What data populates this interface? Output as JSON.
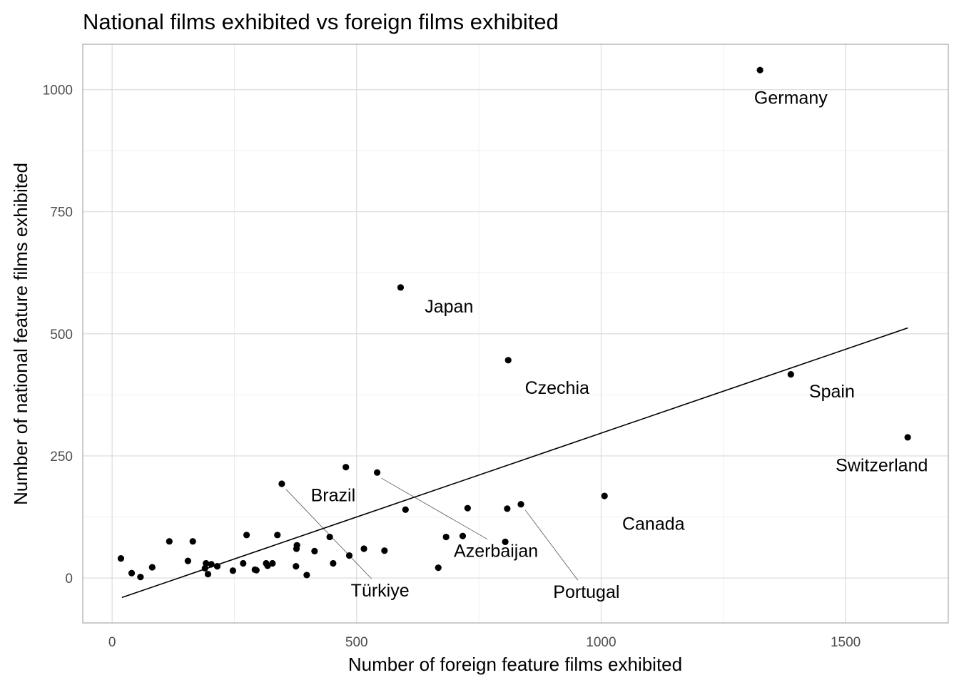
{
  "chart_data": {
    "type": "scatter",
    "title": "National films exhibited vs foreign films exhibited",
    "xlabel": "Number of foreign feature films exhibited",
    "ylabel": "Number of national feature films exhibited",
    "xlim": [
      -60,
      1710
    ],
    "ylim": [
      -92,
      1093
    ],
    "x_ticks": [
      0,
      500,
      1000,
      1500
    ],
    "y_ticks": [
      0,
      250,
      500,
      750,
      1000
    ],
    "x_tick_labels": [
      "0",
      "500",
      "1000",
      "1500"
    ],
    "y_tick_labels": [
      "0",
      "250",
      "500",
      "750",
      "1000"
    ],
    "grid": true,
    "trend_line": {
      "x1": 20,
      "y1": -40,
      "x2": 1627,
      "y2": 512
    },
    "points": [
      {
        "x": 18,
        "y": 40
      },
      {
        "x": 40,
        "y": 10
      },
      {
        "x": 58,
        "y": 2
      },
      {
        "x": 82,
        "y": 22
      },
      {
        "x": 117,
        "y": 75
      },
      {
        "x": 155,
        "y": 35
      },
      {
        "x": 165,
        "y": 75
      },
      {
        "x": 190,
        "y": 20
      },
      {
        "x": 192,
        "y": 30
      },
      {
        "x": 196,
        "y": 8
      },
      {
        "x": 203,
        "y": 28
      },
      {
        "x": 215,
        "y": 24
      },
      {
        "x": 247,
        "y": 15
      },
      {
        "x": 268,
        "y": 30
      },
      {
        "x": 275,
        "y": 88
      },
      {
        "x": 292,
        "y": 17
      },
      {
        "x": 295,
        "y": 16
      },
      {
        "x": 315,
        "y": 30
      },
      {
        "x": 318,
        "y": 25
      },
      {
        "x": 328,
        "y": 30
      },
      {
        "x": 338,
        "y": 88
      },
      {
        "x": 347,
        "y": 193
      },
      {
        "x": 376,
        "y": 24
      },
      {
        "x": 377,
        "y": 60
      },
      {
        "x": 378,
        "y": 67
      },
      {
        "x": 398,
        "y": 6
      },
      {
        "x": 414,
        "y": 55
      },
      {
        "x": 445,
        "y": 84
      },
      {
        "x": 452,
        "y": 30
      },
      {
        "x": 478,
        "y": 227
      },
      {
        "x": 485,
        "y": 46
      },
      {
        "x": 515,
        "y": 60
      },
      {
        "x": 542,
        "y": 216
      },
      {
        "x": 557,
        "y": 56
      },
      {
        "x": 590,
        "y": 595
      },
      {
        "x": 600,
        "y": 140
      },
      {
        "x": 667,
        "y": 21
      },
      {
        "x": 683,
        "y": 84
      },
      {
        "x": 717,
        "y": 86
      },
      {
        "x": 727,
        "y": 143
      },
      {
        "x": 804,
        "y": 74
      },
      {
        "x": 808,
        "y": 142
      },
      {
        "x": 810,
        "y": 446
      },
      {
        "x": 836,
        "y": 151
      },
      {
        "x": 1007,
        "y": 168
      },
      {
        "x": 1325,
        "y": 1040
      },
      {
        "x": 1388,
        "y": 417
      },
      {
        "x": 1627,
        "y": 288
      }
    ],
    "labels": [
      {
        "text": "Germany",
        "x": 1325,
        "y": 1040,
        "lx": 1388,
        "ly": 984,
        "leader": false
      },
      {
        "text": "Japan",
        "x": 590,
        "y": 595,
        "lx": 689,
        "ly": 557,
        "leader": false
      },
      {
        "text": "Czechia",
        "x": 810,
        "y": 446,
        "lx": 910,
        "ly": 390,
        "leader": false
      },
      {
        "text": "Spain",
        "x": 1388,
        "y": 417,
        "lx": 1472,
        "ly": 383,
        "leader": false
      },
      {
        "text": "Switzerland",
        "x": 1627,
        "y": 288,
        "lx": 1574,
        "ly": 232,
        "leader": false
      },
      {
        "text": "Brazil",
        "x": 478,
        "y": 227,
        "lx": 452,
        "ly": 170,
        "leader": false
      },
      {
        "text": "Canada",
        "x": 1007,
        "y": 168,
        "lx": 1107,
        "ly": 112,
        "leader": false
      },
      {
        "text": "Azerbaijan",
        "x": 542,
        "y": 216,
        "lx": 785,
        "ly": 56,
        "leader": true
      },
      {
        "text": "Türkiye",
        "x": 347,
        "y": 193,
        "lx": 548,
        "ly": -25,
        "leader": true
      },
      {
        "text": "Portugal",
        "x": 836,
        "y": 151,
        "lx": 970,
        "ly": -28,
        "leader": true
      }
    ]
  }
}
